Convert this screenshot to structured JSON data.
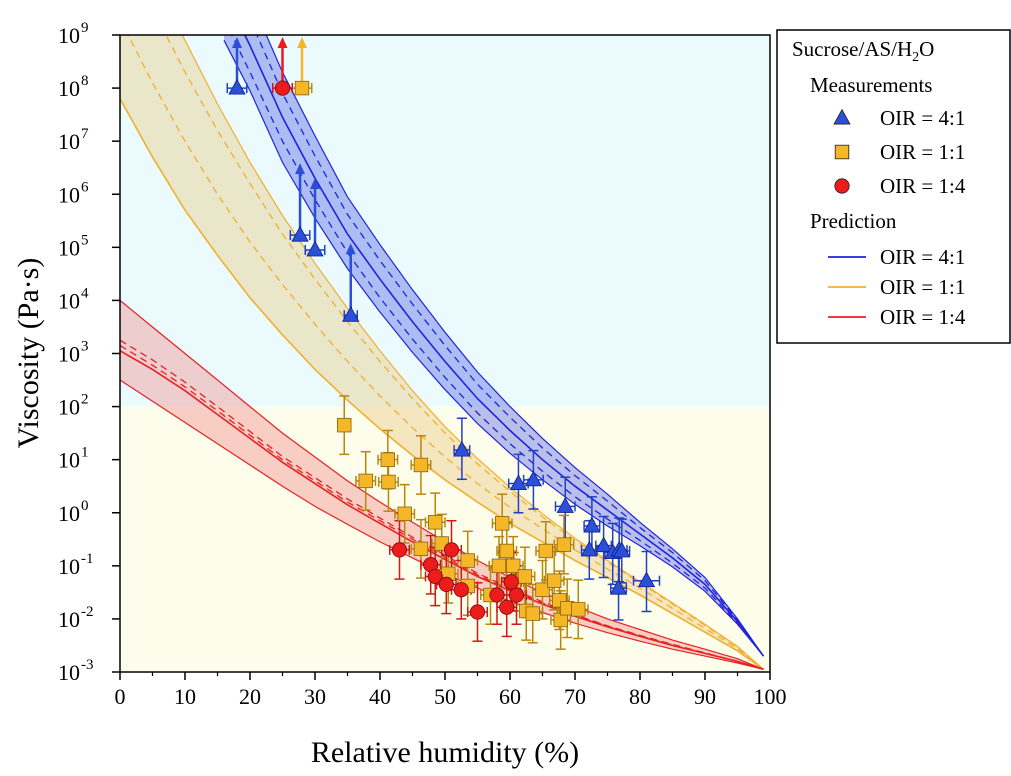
{
  "chart_data": {
    "type": "scatter",
    "xlabel": "Relative humidity (%)",
    "ylabel": "Viscosity (Pa·s)",
    "xlim": [
      0,
      100
    ],
    "ylim_log10": [
      -3,
      9
    ],
    "y_scale": "log",
    "x_ticks": [
      "0",
      "10",
      "20",
      "30",
      "40",
      "50",
      "60",
      "70",
      "80",
      "90",
      "100"
    ],
    "y_ticks": [
      {
        "base": "10",
        "exp": "-3"
      },
      {
        "base": "10",
        "exp": "-2"
      },
      {
        "base": "10",
        "exp": "-1"
      },
      {
        "base": "10",
        "exp": "0"
      },
      {
        "base": "10",
        "exp": "1"
      },
      {
        "base": "10",
        "exp": "2"
      },
      {
        "base": "10",
        "exp": "3"
      },
      {
        "base": "10",
        "exp": "4"
      },
      {
        "base": "10",
        "exp": "5"
      },
      {
        "base": "10",
        "exp": "6"
      },
      {
        "base": "10",
        "exp": "7"
      },
      {
        "base": "10",
        "exp": "8"
      },
      {
        "base": "10",
        "exp": "9"
      }
    ],
    "background_regions": [
      {
        "from_log10": 2,
        "to_log10": 9,
        "color": "#ebfbfd"
      },
      {
        "from_log10": -3,
        "to_log10": 2,
        "color": "#fdfdec"
      }
    ],
    "legend": {
      "position": "top-right, outside plot",
      "title": {
        "main": "Sucrose/AS/H",
        "sub": "2",
        "tail": "O"
      },
      "measurements_header": "Measurements",
      "prediction_header": "Prediction",
      "measurement_entries": [
        {
          "label": "OIR = 4:1",
          "marker": "triangle",
          "color": "#2b4fd6"
        },
        {
          "label": "OIR = 1:1",
          "marker": "square",
          "color": "#f5b727"
        },
        {
          "label": "OIR = 1:4",
          "marker": "circle",
          "color": "#ec1c1c"
        }
      ],
      "prediction_entries": [
        {
          "label": "OIR = 4:1",
          "color": "#2222dd"
        },
        {
          "label": "OIR = 1:1",
          "color": "#f0b030"
        },
        {
          "label": "OIR = 1:4",
          "color": "#e52222"
        }
      ]
    },
    "predictions": [
      {
        "oir": "4:1",
        "color": "#2222dd",
        "fill": "rgba(70,90,230,0.38)",
        "x": [
          16,
          20,
          25,
          30,
          35,
          40,
          45,
          50,
          55,
          60,
          65,
          70,
          75,
          80,
          85,
          90,
          95,
          99
        ],
        "center": [
          9.8,
          8.8,
          7.45,
          6.3,
          5.25,
          4.4,
          3.6,
          2.85,
          2.15,
          1.55,
          1.0,
          0.5,
          0.05,
          -0.4,
          -0.85,
          -1.35,
          -2.05,
          -2.7
        ],
        "lower_dashed": [
          9.3,
          8.3,
          7.0,
          5.9,
          4.9,
          4.05,
          3.27,
          2.55,
          1.88,
          1.3,
          0.78,
          0.3,
          -0.12,
          -0.52,
          -0.95,
          -1.42,
          -2.08,
          -2.7
        ],
        "upper_dashed": [
          10.3,
          9.3,
          7.9,
          6.72,
          5.62,
          4.75,
          3.93,
          3.15,
          2.42,
          1.8,
          1.22,
          0.7,
          0.22,
          -0.28,
          -0.75,
          -1.28,
          -2.02,
          -2.7
        ],
        "band_lower": [
          8.9,
          7.95,
          6.6,
          5.55,
          4.6,
          3.78,
          3.02,
          2.32,
          1.68,
          1.12,
          0.62,
          0.16,
          -0.25,
          -0.62,
          -1.02,
          -1.48,
          -2.1,
          -2.7
        ],
        "band_upper": [
          10.7,
          9.7,
          8.3,
          7.1,
          5.95,
          5.05,
          4.2,
          3.4,
          2.65,
          2.0,
          1.4,
          0.85,
          0.35,
          -0.18,
          -0.68,
          -1.22,
          -2.0,
          -2.7
        ]
      },
      {
        "oir": "1:1",
        "color": "#f0b030",
        "fill": "rgba(232,200,130,0.42)",
        "x": [
          0,
          5,
          10,
          15,
          20,
          25,
          30,
          35,
          40,
          45,
          50,
          55,
          60,
          65,
          70,
          75,
          80,
          85,
          90,
          95,
          99
        ],
        "center": [
          7.8,
          6.7,
          5.7,
          4.85,
          4.05,
          3.35,
          2.7,
          2.12,
          1.58,
          1.08,
          0.62,
          0.2,
          -0.2,
          -0.55,
          -0.9,
          -1.22,
          -1.55,
          -1.9,
          -2.25,
          -2.6,
          -2.95
        ],
        "lower_dashed": [
          9.3,
          8.1,
          7.0,
          6.0,
          5.1,
          4.3,
          3.55,
          2.85,
          2.2,
          1.6,
          1.05,
          0.55,
          0.1,
          -0.3,
          -0.7,
          -1.06,
          -1.42,
          -1.8,
          -2.18,
          -2.56,
          -2.95
        ],
        "upper_dashed": [
          10.8,
          9.5,
          8.3,
          7.2,
          6.2,
          5.25,
          4.4,
          3.6,
          2.85,
          2.15,
          1.5,
          0.92,
          0.4,
          -0.08,
          -0.52,
          -0.93,
          -1.32,
          -1.72,
          -2.12,
          -2.53,
          -2.95
        ],
        "band_lower": [
          7.8,
          6.7,
          5.7,
          4.85,
          4.05,
          3.35,
          2.7,
          2.12,
          1.58,
          1.08,
          0.62,
          0.2,
          -0.2,
          -0.55,
          -0.9,
          -1.22,
          -1.55,
          -1.9,
          -2.25,
          -2.6,
          -2.95
        ],
        "band_upper": [
          11.5,
          10.1,
          8.9,
          7.7,
          6.6,
          5.6,
          4.7,
          3.85,
          3.05,
          2.3,
          1.62,
          1.02,
          0.48,
          -0.02,
          -0.48,
          -0.9,
          -1.3,
          -1.7,
          -2.1,
          -2.52,
          -2.95
        ]
      },
      {
        "oir": "1:4",
        "color": "#e52222",
        "fill": "rgba(240,140,140,0.42)",
        "x": [
          0,
          5,
          10,
          15,
          20,
          25,
          30,
          35,
          40,
          45,
          50,
          55,
          60,
          65,
          70,
          75,
          80,
          85,
          90,
          95,
          99
        ],
        "center": [
          3.05,
          2.7,
          2.3,
          1.85,
          1.4,
          0.95,
          0.55,
          0.15,
          -0.2,
          -0.55,
          -0.88,
          -1.2,
          -1.47,
          -1.72,
          -1.95,
          -2.15,
          -2.33,
          -2.5,
          -2.65,
          -2.8,
          -2.95
        ],
        "lower_dashed": [
          3.15,
          2.78,
          2.37,
          1.92,
          1.46,
          1.0,
          0.6,
          0.2,
          -0.15,
          -0.5,
          -0.84,
          -1.17,
          -1.45,
          -1.7,
          -1.93,
          -2.14,
          -2.32,
          -2.49,
          -2.65,
          -2.8,
          -2.95
        ],
        "upper_dashed": [
          3.25,
          2.88,
          2.46,
          2.0,
          1.53,
          1.06,
          0.66,
          0.26,
          -0.1,
          -0.46,
          -0.8,
          -1.14,
          -1.42,
          -1.68,
          -1.92,
          -2.13,
          -2.31,
          -2.48,
          -2.64,
          -2.8,
          -2.95
        ],
        "band_lower": [
          2.5,
          2.1,
          1.7,
          1.3,
          0.9,
          0.5,
          0.12,
          -0.22,
          -0.55,
          -0.85,
          -1.15,
          -1.42,
          -1.67,
          -1.88,
          -2.08,
          -2.26,
          -2.42,
          -2.57,
          -2.7,
          -2.83,
          -2.95
        ],
        "band_upper": [
          4.0,
          3.5,
          3.0,
          2.5,
          2.0,
          1.5,
          1.05,
          0.6,
          0.2,
          -0.18,
          -0.55,
          -0.9,
          -1.22,
          -1.5,
          -1.76,
          -2.0,
          -2.2,
          -2.4,
          -2.57,
          -2.75,
          -2.95
        ]
      }
    ],
    "measurements": [
      {
        "oir": "4:1",
        "marker": "triangle",
        "color": "#2b4fd6",
        "edge": "#0d1f8a",
        "errcolor": "#2040c8",
        "points": [
          {
            "x": 18,
            "y": 8.0,
            "xerr": 1.5,
            "lower_limit": true
          },
          {
            "x": 27.7,
            "y": 5.23,
            "xerr": 1.5,
            "lower_limit": true
          },
          {
            "x": 30.0,
            "y": 4.95,
            "xerr": 1.5,
            "lower_limit": true
          },
          {
            "x": 35.5,
            "y": 3.72,
            "xerr": 1.0,
            "lower_limit": true
          },
          {
            "x": 52.6,
            "y": 1.18,
            "xerr": 1.2,
            "yerr": [
              0.55,
              0.6
            ]
          },
          {
            "x": 61.3,
            "y": 0.55,
            "xerr": 1.5,
            "yerr": [
              0.55,
              0.55
            ]
          },
          {
            "x": 63.6,
            "y": 0.62,
            "xerr": 1.5,
            "yerr": [
              0.55,
              0.55
            ]
          },
          {
            "x": 68.5,
            "y": 0.12,
            "xerr": 1.5,
            "yerr": [
              0.7,
              0.55
            ]
          },
          {
            "x": 72.6,
            "y": -0.25,
            "xerr": 1.2,
            "yerr": [
              0.55,
              0.55
            ]
          },
          {
            "x": 72.2,
            "y": -0.7,
            "xerr": 1.2,
            "yerr": [
              0.55,
              0.55
            ]
          },
          {
            "x": 74.4,
            "y": -0.62,
            "xerr": 1.2,
            "yerr": [
              0.6,
              0.55
            ]
          },
          {
            "x": 75.8,
            "y": -0.75,
            "xerr": 1.2,
            "yerr": [
              0.6,
              0.55
            ]
          },
          {
            "x": 76.8,
            "y": -0.7,
            "xerr": 1.2,
            "yerr": [
              0.6,
              0.6
            ]
          },
          {
            "x": 77.2,
            "y": -0.72,
            "xerr": 1.2,
            "yerr": [
              0.6,
              0.6
            ]
          },
          {
            "x": 76.7,
            "y": -1.42,
            "xerr": 1.2,
            "yerr": [
              0.6,
              0.7
            ]
          },
          {
            "x": 81.0,
            "y": -1.28,
            "xerr": 2.0,
            "yerr": [
              0.58,
              0.55
            ]
          }
        ]
      },
      {
        "oir": "1:1",
        "marker": "square",
        "color": "#f5b727",
        "edge": "#8a6208",
        "errcolor": "#b8860b",
        "points": [
          {
            "x": 28.0,
            "y": 8.0,
            "xerr": 1.5,
            "lower_limit": true
          },
          {
            "x": 34.5,
            "y": 1.65,
            "xerr": 1.0,
            "yerr": [
              0.55,
              0.55
            ]
          },
          {
            "x": 41.2,
            "y": 1.0,
            "xerr": 1.5,
            "yerr": [
              0.55,
              0.55
            ]
          },
          {
            "x": 46.3,
            "y": 0.9,
            "xerr": 1.5,
            "yerr": [
              0.55,
              0.55
            ]
          },
          {
            "x": 37.8,
            "y": 0.6,
            "xerr": 1.5,
            "yerr": [
              0.55,
              0.55
            ]
          },
          {
            "x": 41.3,
            "y": 0.58,
            "xerr": 1.5,
            "yerr": [
              0.55,
              0.55
            ]
          },
          {
            "x": 43.8,
            "y": -0.02,
            "xerr": 1.5,
            "yerr": [
              0.55,
              0.55
            ]
          },
          {
            "x": 48.5,
            "y": -0.18,
            "xerr": 1.5,
            "yerr": [
              0.55,
              0.55
            ]
          },
          {
            "x": 46.3,
            "y": -0.68,
            "xerr": 1.5,
            "yerr": [
              0.55,
              0.55
            ]
          },
          {
            "x": 49.5,
            "y": -0.58,
            "xerr": 1.5,
            "yerr": [
              0.55,
              0.55
            ]
          },
          {
            "x": 53.5,
            "y": -0.9,
            "xerr": 1.5,
            "yerr": [
              0.55,
              0.55
            ]
          },
          {
            "x": 50.5,
            "y": -1.15,
            "xerr": 1.5,
            "yerr": [
              0.55,
              0.55
            ]
          },
          {
            "x": 53.5,
            "y": -1.38,
            "xerr": 1.5,
            "yerr": [
              0.55,
              0.55
            ]
          },
          {
            "x": 58.8,
            "y": -0.2,
            "xerr": 1.5,
            "yerr": [
              0.55,
              0.55
            ]
          },
          {
            "x": 59.5,
            "y": -0.72,
            "xerr": 1.5,
            "yerr": [
              0.55,
              0.55
            ]
          },
          {
            "x": 60.5,
            "y": -1.0,
            "xerr": 1.5,
            "yerr": [
              0.55,
              0.55
            ]
          },
          {
            "x": 58.3,
            "y": -1.0,
            "xerr": 1.5,
            "yerr": [
              0.55,
              0.55
            ]
          },
          {
            "x": 57.0,
            "y": -1.55,
            "xerr": 1.5,
            "yerr": [
              0.55,
              0.55
            ]
          },
          {
            "x": 60.6,
            "y": -1.3,
            "xerr": 1.5,
            "yerr": [
              0.55,
              0.55
            ]
          },
          {
            "x": 62.3,
            "y": -1.2,
            "xerr": 1.5,
            "yerr": [
              0.55,
              0.55
            ]
          },
          {
            "x": 62.5,
            "y": -1.85,
            "xerr": 1.5,
            "yerr": [
              0.55,
              0.55
            ]
          },
          {
            "x": 63.5,
            "y": -1.9,
            "xerr": 1.5,
            "yerr": [
              0.55,
              0.55
            ]
          },
          {
            "x": 65.0,
            "y": -1.45,
            "xerr": 1.5,
            "yerr": [
              0.55,
              0.55
            ]
          },
          {
            "x": 65.5,
            "y": -0.72,
            "xerr": 1.5,
            "yerr": [
              0.55,
              0.55
            ]
          },
          {
            "x": 66.8,
            "y": -1.28,
            "xerr": 1.5,
            "yerr": [
              0.55,
              0.55
            ]
          },
          {
            "x": 67.6,
            "y": -1.65,
            "xerr": 1.5,
            "yerr": [
              0.55,
              0.55
            ]
          },
          {
            "x": 67.8,
            "y": -2.02,
            "xerr": 1.5,
            "yerr": [
              0.55,
              0.55
            ]
          },
          {
            "x": 68.3,
            "y": -0.6,
            "xerr": 1.5,
            "yerr": [
              0.55,
              0.55
            ]
          },
          {
            "x": 68.8,
            "y": -1.8,
            "xerr": 1.5,
            "yerr": [
              0.55,
              0.55
            ]
          },
          {
            "x": 70.5,
            "y": -1.82,
            "xerr": 1.5,
            "yerr": [
              0.55,
              0.55
            ]
          }
        ]
      },
      {
        "oir": "1:4",
        "marker": "circle",
        "color": "#ec1c1c",
        "edge": "#7a0a0a",
        "errcolor": "#d01818",
        "points": [
          {
            "x": 25.0,
            "y": 8.0,
            "xerr": 1.5,
            "lower_limit": true
          },
          {
            "x": 43.0,
            "y": -0.7,
            "xerr": 1.5,
            "yerr": [
              0.55,
              0.55
            ]
          },
          {
            "x": 47.8,
            "y": -0.98,
            "xerr": 1.5,
            "yerr": [
              0.55,
              0.55
            ]
          },
          {
            "x": 51.0,
            "y": -0.7,
            "xerr": 1.5,
            "yerr": [
              0.55,
              0.55
            ]
          },
          {
            "x": 48.5,
            "y": -1.2,
            "xerr": 1.5,
            "yerr": [
              0.55,
              0.55
            ]
          },
          {
            "x": 50.2,
            "y": -1.35,
            "xerr": 1.5,
            "yerr": [
              0.55,
              0.55
            ]
          },
          {
            "x": 52.5,
            "y": -1.45,
            "xerr": 1.5,
            "yerr": [
              0.55,
              0.55
            ]
          },
          {
            "x": 55.0,
            "y": -1.87,
            "xerr": 1.5,
            "yerr": [
              0.55,
              0.55
            ]
          },
          {
            "x": 58.0,
            "y": -1.55,
            "xerr": 1.5,
            "yerr": [
              0.55,
              0.55
            ]
          },
          {
            "x": 59.5,
            "y": -1.78,
            "xerr": 1.5,
            "yerr": [
              0.55,
              0.55
            ]
          },
          {
            "x": 61.0,
            "y": -1.55,
            "xerr": 1.5,
            "yerr": [
              0.55,
              0.55
            ]
          },
          {
            "x": 60.2,
            "y": -1.3,
            "xerr": 1.5,
            "yerr": [
              0.55,
              0.55
            ]
          }
        ]
      }
    ]
  }
}
